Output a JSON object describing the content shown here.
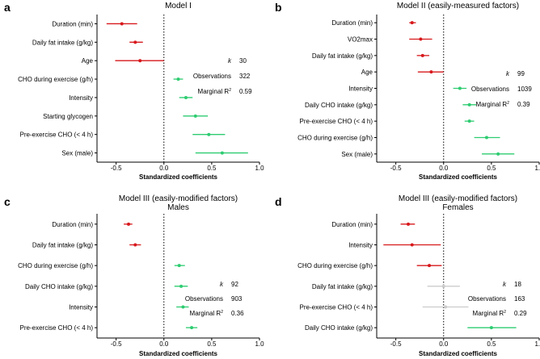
{
  "colors": {
    "negative": "#d7191c",
    "positive": "#2ecc71",
    "neutral": "#cccccc",
    "axis": "#000000",
    "zero_line": "#000000"
  },
  "chart_data": [
    {
      "type": "forest",
      "panel_letter": "a",
      "title": "Model I",
      "subtitle": "",
      "xlabel": "Standardized coefficients",
      "xlim": [
        -0.7,
        1.0
      ],
      "xticks": [
        -0.5,
        0.0,
        0.5,
        1.0
      ],
      "xtick_labels": [
        "-0.5",
        "0.0",
        "0.5",
        "1.0"
      ],
      "zero_line": "dotted",
      "rows": [
        {
          "label": "Duration (min)",
          "estimate": -0.44,
          "lower": -0.6,
          "upper": -0.28,
          "sign": "negative"
        },
        {
          "label": "Daily fat intake (g/kg)",
          "estimate": -0.3,
          "lower": -0.36,
          "upper": -0.22,
          "sign": "negative"
        },
        {
          "label": "Age",
          "estimate": -0.25,
          "lower": -0.51,
          "upper": 0.0,
          "sign": "negative"
        },
        {
          "label": "CHO during exercise (g/h)",
          "estimate": 0.15,
          "lower": 0.1,
          "upper": 0.2,
          "sign": "positive"
        },
        {
          "label": "Intensity",
          "estimate": 0.23,
          "lower": 0.16,
          "upper": 0.3,
          "sign": "positive"
        },
        {
          "label": "Starting glycogen",
          "estimate": 0.33,
          "lower": 0.2,
          "upper": 0.46,
          "sign": "positive"
        },
        {
          "label": "Pre-exercise CHO (< 4 h)",
          "estimate": 0.47,
          "lower": 0.3,
          "upper": 0.64,
          "sign": "positive"
        },
        {
          "label": "Sex (male)",
          "estimate": 0.61,
          "lower": 0.33,
          "upper": 0.88,
          "sign": "positive"
        }
      ],
      "stats": [
        {
          "label": "k",
          "value": "30",
          "italic": true,
          "marker": ""
        },
        {
          "label": "Observations",
          "value": "322",
          "italic": false,
          "marker": ""
        },
        {
          "label": "Marginal R",
          "value": "0.59",
          "italic": false,
          "marker": "2"
        }
      ]
    },
    {
      "type": "forest",
      "panel_letter": "b",
      "title": "Model II (easily-measured factors)",
      "subtitle": "",
      "xlabel": "Standardized coefficients",
      "xlim": [
        -0.7,
        1.0
      ],
      "xticks": [
        -0.5,
        0.0,
        0.5,
        1.0
      ],
      "xtick_labels": [
        "-0.5",
        "0.0",
        "0.5",
        "1.0"
      ],
      "zero_line": "dotted",
      "rows": [
        {
          "label": "Duration (min)",
          "estimate": -0.33,
          "lower": -0.36,
          "upper": -0.29,
          "sign": "negative"
        },
        {
          "label": "VO2max",
          "estimate": -0.24,
          "lower": -0.36,
          "upper": -0.12,
          "sign": "negative"
        },
        {
          "label": "Daily fat intake (g/kg)",
          "estimate": -0.22,
          "lower": -0.28,
          "upper": -0.15,
          "sign": "negative"
        },
        {
          "label": "Age",
          "estimate": -0.13,
          "lower": -0.27,
          "upper": 0.0,
          "sign": "negative"
        },
        {
          "label": "Intensity",
          "estimate": 0.17,
          "lower": 0.1,
          "upper": 0.24,
          "sign": "positive"
        },
        {
          "label": "Daily CHO intake (g/kg)",
          "estimate": 0.27,
          "lower": 0.2,
          "upper": 0.34,
          "sign": "positive"
        },
        {
          "label": "Pre-exercise CHO (< 4 h)",
          "estimate": 0.27,
          "lower": 0.22,
          "upper": 0.32,
          "sign": "positive"
        },
        {
          "label": "CHO during exercise (g/h)",
          "estimate": 0.45,
          "lower": 0.32,
          "upper": 0.59,
          "sign": "positive"
        },
        {
          "label": "Sex (male)",
          "estimate": 0.57,
          "lower": 0.4,
          "upper": 0.74,
          "sign": "positive"
        }
      ],
      "stats": [
        {
          "label": "k",
          "value": "99",
          "italic": true,
          "marker": ""
        },
        {
          "label": "Observations",
          "value": "1039",
          "italic": false,
          "marker": ""
        },
        {
          "label": "Marginal R",
          "value": "0.39",
          "italic": false,
          "marker": "2"
        }
      ]
    },
    {
      "type": "forest",
      "panel_letter": "c",
      "title": "Model III (easily-modified factors)",
      "subtitle": "Males",
      "xlabel": "Standardized coefficients",
      "xlim": [
        -0.7,
        1.0
      ],
      "xticks": [
        -0.5,
        0.0,
        0.5,
        1.0
      ],
      "xtick_labels": [
        "-0.5",
        "0.0",
        "0.5",
        "1.0"
      ],
      "zero_line": "dotted",
      "rows": [
        {
          "label": "Duration (min)",
          "estimate": -0.37,
          "lower": -0.42,
          "upper": -0.33,
          "sign": "negative"
        },
        {
          "label": "Daily fat intake (g/kg)",
          "estimate": -0.3,
          "lower": -0.36,
          "upper": -0.24,
          "sign": "negative"
        },
        {
          "label": "CHO during exercise (g/h)",
          "estimate": 0.16,
          "lower": 0.11,
          "upper": 0.22,
          "sign": "positive"
        },
        {
          "label": "Daily CHO intake (g/kg)",
          "estimate": 0.18,
          "lower": 0.11,
          "upper": 0.25,
          "sign": "positive"
        },
        {
          "label": "Intensity",
          "estimate": 0.2,
          "lower": 0.13,
          "upper": 0.26,
          "sign": "positive"
        },
        {
          "label": "Pre-exercise CHO (< 4 h)",
          "estimate": 0.29,
          "lower": 0.23,
          "upper": 0.35,
          "sign": "positive"
        }
      ],
      "stats": [
        {
          "label": "k",
          "value": "92",
          "italic": true,
          "marker": ""
        },
        {
          "label": "Observations",
          "value": "903",
          "italic": false,
          "marker": ""
        },
        {
          "label": "Marginal R",
          "value": "0.36",
          "italic": false,
          "marker": "2"
        }
      ]
    },
    {
      "type": "forest",
      "panel_letter": "d",
      "title": "Model III (easily-modified factors)",
      "subtitle": "Females",
      "xlabel": "Standardized coefficients",
      "xlim": [
        -0.7,
        1.0
      ],
      "xticks": [
        -0.5,
        0.0,
        0.5,
        1.0
      ],
      "xtick_labels": [
        "-0.5",
        "0.0",
        "0.5",
        "1.0"
      ],
      "zero_line": "dotted",
      "rows": [
        {
          "label": "Duration (min)",
          "estimate": -0.37,
          "lower": -0.45,
          "upper": -0.3,
          "sign": "negative"
        },
        {
          "label": "Intensity",
          "estimate": -0.33,
          "lower": -0.63,
          "upper": -0.03,
          "sign": "negative"
        },
        {
          "label": "CHO during exercise (g/h)",
          "estimate": -0.15,
          "lower": -0.28,
          "upper": -0.02,
          "sign": "negative"
        },
        {
          "label": "Daily fat intake (g/kg)",
          "estimate": 0.0,
          "lower": -0.17,
          "upper": 0.17,
          "sign": "neutral"
        },
        {
          "label": "Pre-exercise CHO (< 4 h)",
          "estimate": 0.02,
          "lower": -0.22,
          "upper": 0.26,
          "sign": "neutral"
        },
        {
          "label": "Daily CHO intake (g/kg)",
          "estimate": 0.5,
          "lower": 0.25,
          "upper": 0.76,
          "sign": "positive"
        }
      ],
      "stats": [
        {
          "label": "k",
          "value": "18",
          "italic": true,
          "marker": ""
        },
        {
          "label": "Observations",
          "value": "163",
          "italic": false,
          "marker": ""
        },
        {
          "label": "Marginal R",
          "value": "0.29",
          "italic": false,
          "marker": "2"
        }
      ]
    }
  ]
}
